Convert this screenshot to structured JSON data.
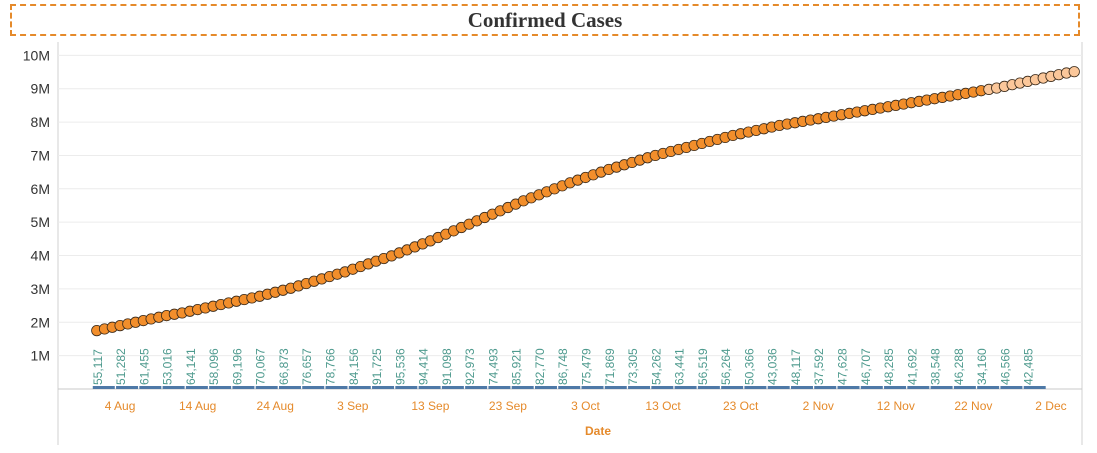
{
  "title": "Confirmed Cases",
  "chart_data": {
    "type": "line",
    "title": "Confirmed Cases",
    "xlabel": "Date",
    "ylabel": "",
    "ylim": [
      0,
      10400000
    ],
    "y_ticks": [
      "1M",
      "2M",
      "3M",
      "4M",
      "5M",
      "6M",
      "7M",
      "8M",
      "9M",
      "10M"
    ],
    "y_tick_values": [
      1000000,
      2000000,
      3000000,
      4000000,
      5000000,
      6000000,
      7000000,
      8000000,
      9000000,
      10000000
    ],
    "x_range": [
      "2020-07-27",
      "2020-12-06"
    ],
    "x_ticks": [
      "4 Aug",
      "14 Aug",
      "24 Aug",
      "3 Sep",
      "13 Sep",
      "23 Sep",
      "3 Oct",
      "13 Oct",
      "23 Oct",
      "2 Nov",
      "12 Nov",
      "22 Nov",
      "2 Dec"
    ],
    "x_tick_dates": [
      "2020-08-04",
      "2020-08-14",
      "2020-08-24",
      "2020-09-03",
      "2020-09-13",
      "2020-09-23",
      "2020-10-03",
      "2020-10-13",
      "2020-10-23",
      "2020-11-02",
      "2020-11-12",
      "2020-11-22",
      "2020-12-02"
    ],
    "series": [
      {
        "name": "",
        "kind": "cumulative-dots",
        "start_date": "2020-08-01",
        "end_date": "2020-11-29",
        "values": [
          1750000,
          1800000,
          1850000,
          1900000,
          1950000,
          2000000,
          2050000,
          2100000,
          2150000,
          2200000,
          2240000,
          2280000,
          2330000,
          2380000,
          2430000,
          2480000,
          2530000,
          2580000,
          2630000,
          2680000,
          2730000,
          2780000,
          2840000,
          2900000,
          2960000,
          3020000,
          3090000,
          3160000,
          3230000,
          3300000,
          3370000,
          3440000,
          3510000,
          3590000,
          3670000,
          3750000,
          3830000,
          3910000,
          3990000,
          4080000,
          4170000,
          4260000,
          4350000,
          4440000,
          4540000,
          4640000,
          4740000,
          4840000,
          4940000,
          5040000,
          5140000,
          5240000,
          5340000,
          5440000,
          5540000,
          5640000,
          5730000,
          5820000,
          5910000,
          6000000,
          6090000,
          6180000,
          6260000,
          6340000,
          6420000,
          6500000,
          6580000,
          6650000,
          6720000,
          6790000,
          6860000,
          6930000,
          7000000,
          7060000,
          7120000,
          7180000,
          7240000,
          7300000,
          7360000,
          7420000,
          7480000,
          7540000,
          7600000,
          7650000,
          7700000,
          7750000,
          7800000,
          7850000,
          7900000,
          7940000,
          7980000,
          8020000,
          8060000,
          8100000,
          8140000,
          8180000,
          8220000,
          8260000,
          8300000,
          8340000,
          8380000,
          8420000,
          8460000,
          8500000,
          8540000,
          8580000,
          8620000,
          8660000,
          8700000,
          8740000,
          8780000,
          8820000,
          8860000,
          8900000,
          8940000,
          8980000,
          9020000,
          9070000,
          9120000,
          9170000,
          9220000,
          9270000,
          9320000,
          9370000,
          9420000,
          9470000,
          9510000
        ]
      },
      {
        "name": "",
        "kind": "daily-labels",
        "dates": [
          "2020-08-01",
          "2020-08-04",
          "2020-08-07",
          "2020-08-10",
          "2020-08-13",
          "2020-08-16",
          "2020-08-19",
          "2020-08-22",
          "2020-08-25",
          "2020-08-28",
          "2020-08-31",
          "2020-09-03",
          "2020-09-06",
          "2020-09-09",
          "2020-09-12",
          "2020-09-15",
          "2020-09-18",
          "2020-09-21",
          "2020-09-24",
          "2020-09-27",
          "2020-09-30",
          "2020-10-03",
          "2020-10-06",
          "2020-10-09",
          "2020-10-12",
          "2020-10-15",
          "2020-10-18",
          "2020-10-21",
          "2020-10-24",
          "2020-10-27",
          "2020-10-30",
          "2020-11-02",
          "2020-11-05",
          "2020-11-08",
          "2020-11-11",
          "2020-11-14",
          "2020-11-17",
          "2020-11-20",
          "2020-11-23",
          "2020-11-26",
          "2020-11-29"
        ],
        "labels": [
          "55,117",
          "51,282",
          "61,455",
          "53,016",
          "64,141",
          "58,096",
          "69,196",
          "70,067",
          "66,873",
          "76,657",
          "78,766",
          "84,156",
          "91,725",
          "95,536",
          "94,414",
          "91,098",
          "92,973",
          "74,493",
          "85,921",
          "82,770",
          "86,748",
          "75,479",
          "71,869",
          "73,305",
          "54,262",
          "63,441",
          "56,519",
          "56,264",
          "50,366",
          "43,036",
          "48,117",
          "37,592",
          "47,628",
          "46,707",
          "48,285",
          "41,692",
          "38,548",
          "46,288",
          "34,160",
          "46,566",
          "42,485"
        ]
      }
    ],
    "colors": {
      "marker_fill": "#f28e2b",
      "marker_fill_recent": "#fbc79a",
      "marker_stroke": "#3a2a1a",
      "label_text": "#4e9a8e",
      "baseline_bar": "#4e79a7",
      "axis_tick": "#e58a2b",
      "gridline": "#ececec"
    },
    "grid": true
  }
}
